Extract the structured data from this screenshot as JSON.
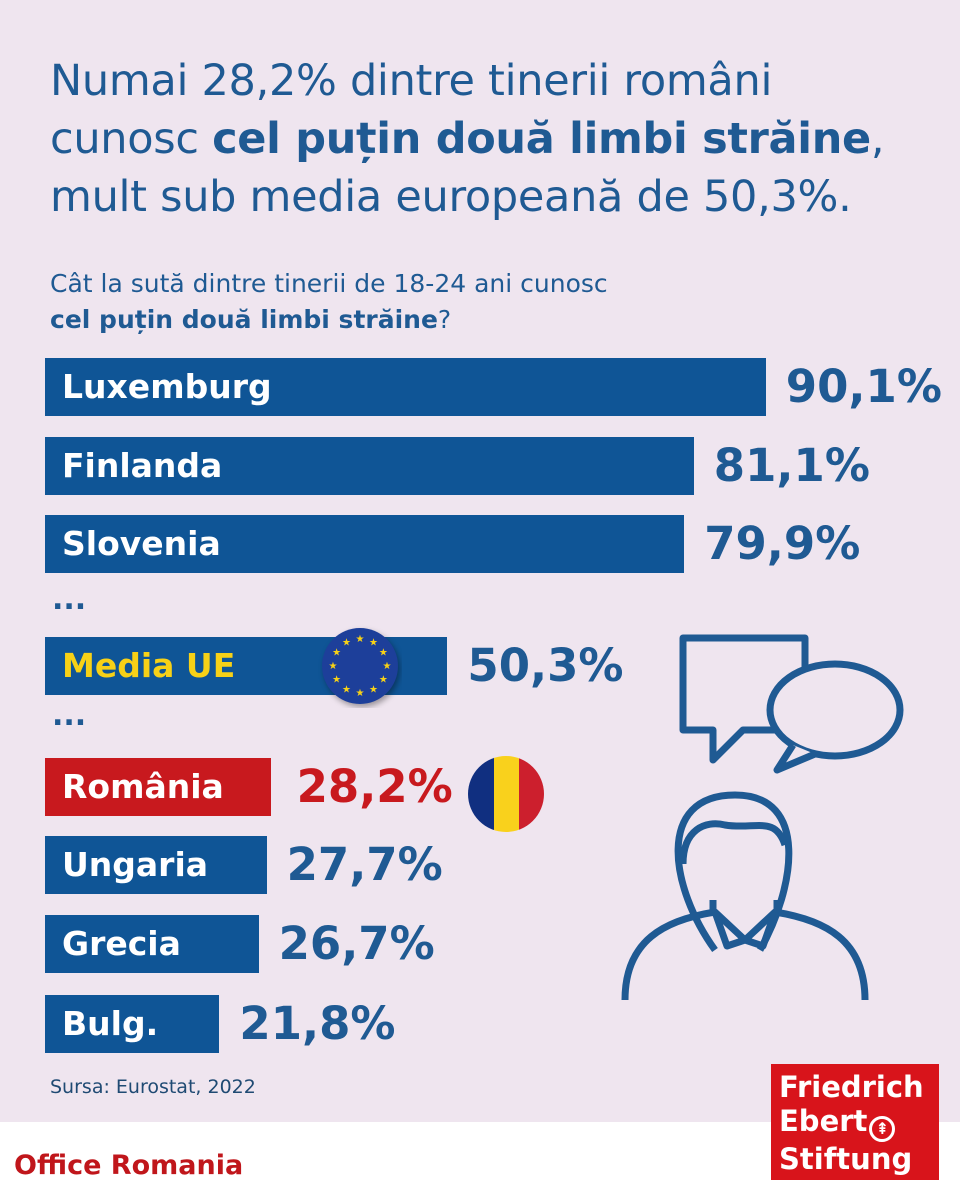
{
  "title": {
    "line1": "Numai 28,2% dintre tinerii români",
    "line2_pre": "cunosc ",
    "line2_bold": "cel puțin două limbi străine",
    "line2_post": ",",
    "line3": "mult sub media europeană de 50,3%."
  },
  "subtitle": {
    "line1": "Cât la sută dintre tinerii de 18-24 ani cunosc",
    "line2_bold": "cel puțin două limbi străine",
    "line2_post": "?"
  },
  "ellipsis": "...",
  "chart_data": {
    "type": "bar",
    "orientation": "horizontal",
    "categories": [
      "Luxemburg",
      "Finlanda",
      "Slovenia",
      "Media UE",
      "România",
      "Ungaria",
      "Grecia",
      "Bulg."
    ],
    "values": [
      90.1,
      81.1,
      79.9,
      50.3,
      28.2,
      27.7,
      26.7,
      21.8
    ],
    "value_labels": [
      "90,1%",
      "81,1%",
      "79,9%",
      "50,3%",
      "28,2%",
      "27,7%",
      "26,7%",
      "21,8%"
    ],
    "unit": "%",
    "xlim": [
      0,
      100
    ],
    "colors": {
      "default": "#0f5596",
      "eu_label": "#f7d117",
      "romania": "#c8191e"
    }
  },
  "source": "Sursa: Eurostat, 2022",
  "footer": {
    "office": "Office Romania",
    "logo": [
      "Friedrich",
      "Ebert",
      "Stiftung"
    ]
  }
}
